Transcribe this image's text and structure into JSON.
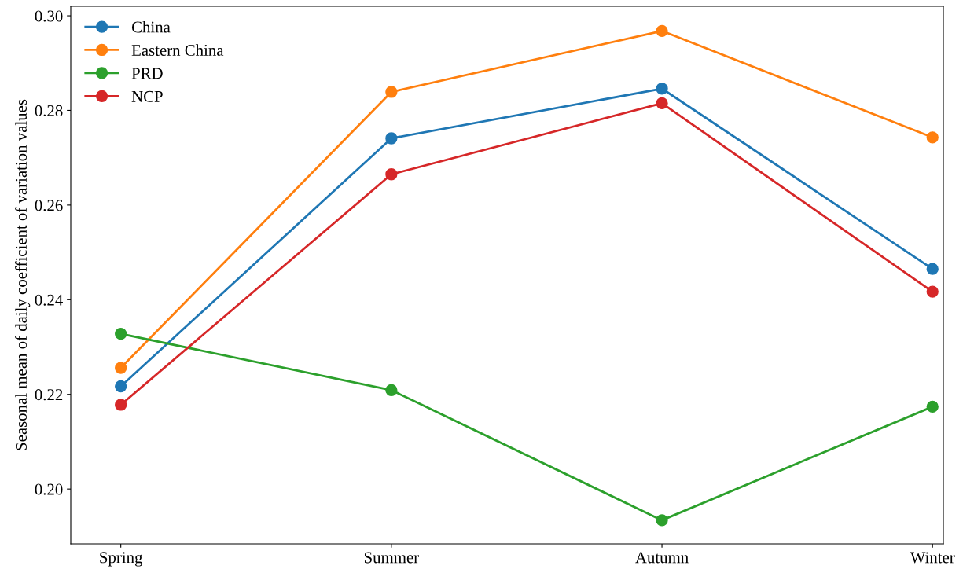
{
  "chart_data": {
    "type": "line",
    "ylabel": "Seasonal mean of daily coefficient of variation values",
    "categories": [
      "Spring",
      "Summer",
      "Autumn",
      "Winter"
    ],
    "series": [
      {
        "name": "China",
        "color": "#1f77b4",
        "values": [
          0.2217,
          0.2741,
          0.2846,
          0.2465
        ]
      },
      {
        "name": "Eastern China",
        "color": "#ff7f0e",
        "values": [
          0.2256,
          0.2839,
          0.2968,
          0.2743
        ]
      },
      {
        "name": "PRD",
        "color": "#2ca02c",
        "values": [
          0.2328,
          0.2209,
          0.1934,
          0.2174
        ]
      },
      {
        "name": "NCP",
        "color": "#d62728",
        "values": [
          0.2178,
          0.2665,
          0.2815,
          0.2417
        ]
      }
    ],
    "ylim": [
      0.1884,
      0.302
    ],
    "yticks": [
      {
        "value": 0.2,
        "label": "0.20"
      },
      {
        "value": 0.22,
        "label": "0.22"
      },
      {
        "value": 0.24,
        "label": "0.24"
      },
      {
        "value": 0.26,
        "label": "0.26"
      },
      {
        "value": 0.28,
        "label": "0.28"
      },
      {
        "value": 0.3,
        "label": "0.30"
      }
    ],
    "grid": false,
    "legend": "top left",
    "marker": "circle",
    "line_style": "solid"
  }
}
